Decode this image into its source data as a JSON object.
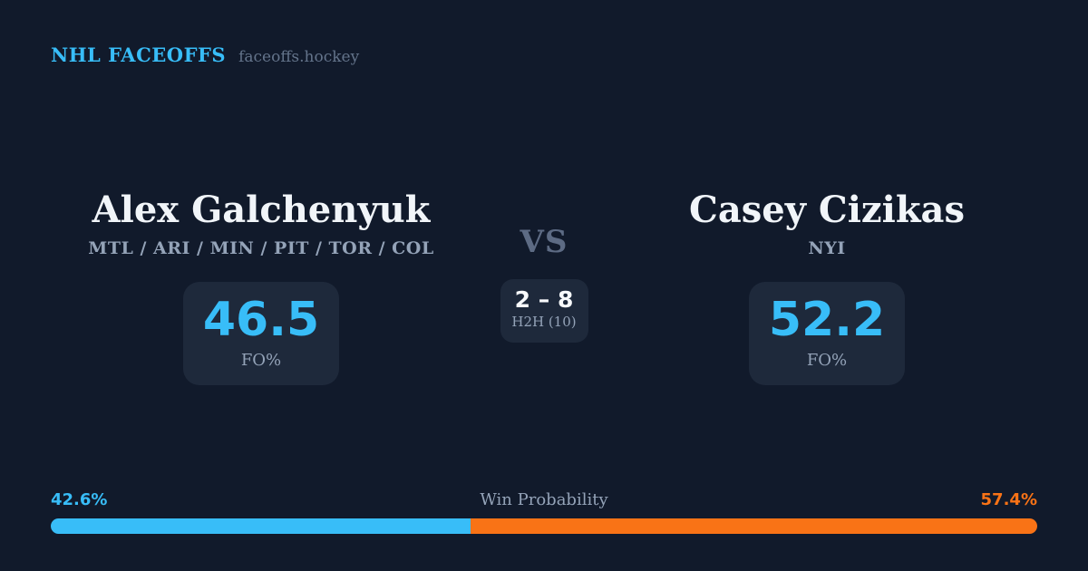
{
  "brand": {
    "title": "NHL FACEOFFS",
    "site": "faceoffs.hockey"
  },
  "players": {
    "left": {
      "name": "Alex Galchenyuk",
      "teams": "MTL / ARI / MIN / PIT / TOR / COL",
      "fo_value": "46.5",
      "fo_label": "FO%"
    },
    "right": {
      "name": "Casey Cizikas",
      "teams": "NYI",
      "fo_value": "52.2",
      "fo_label": "FO%"
    }
  },
  "center": {
    "vs_label": "VS",
    "h2h_score": "2 – 8",
    "h2h_label": "H2H (10)"
  },
  "win_probability": {
    "label": "Win Probability",
    "left_pct": "42.6%",
    "right_pct": "57.4%",
    "left_value": 42.6,
    "right_value": 57.4
  },
  "colors": {
    "background": "#111a2b",
    "card": "#1e293b",
    "accent_blue": "#38bdf8",
    "accent_orange": "#f97316",
    "muted_text": "#94a3b8",
    "vs_text": "#5d6b84",
    "name_text": "#f1f5f9"
  },
  "chart_data": {
    "type": "bar",
    "title": "Win Probability",
    "layout": "horizontal-stacked",
    "categories": [
      "Alex Galchenyuk",
      "Casey Cizikas"
    ],
    "values": [
      42.6,
      57.4
    ],
    "unit": "%",
    "xlim": [
      0,
      100
    ],
    "colors": [
      "#38bdf8",
      "#f97316"
    ],
    "annotations": [
      {
        "player": "Alex Galchenyuk",
        "faceoff_pct": 46.5,
        "h2h_wins": 2
      },
      {
        "player": "Casey Cizikas",
        "faceoff_pct": 52.2,
        "h2h_wins": 8
      },
      {
        "h2h_sample": 10
      }
    ]
  }
}
